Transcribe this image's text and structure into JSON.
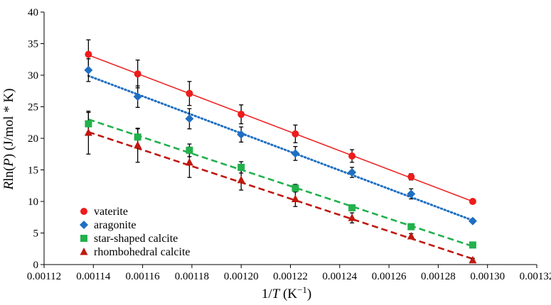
{
  "chart_data": {
    "type": "scatter",
    "title": "",
    "xlabel_parts": [
      "1/",
      "T",
      " (K",
      "−1",
      ")"
    ],
    "ylabel_parts": [
      "R",
      "ln(",
      "P",
      ") (J/mol * K)"
    ],
    "xlim": [
      0.00112,
      0.00132
    ],
    "ylim": [
      0,
      40
    ],
    "x_ticks": [
      "0.00112",
      "0.00114",
      "0.00116",
      "0.00118",
      "0.00120",
      "0.00122",
      "0.00124",
      "0.00126",
      "0.00128",
      "0.00130",
      "0.00132"
    ],
    "y_ticks": [
      "0",
      "5",
      "10",
      "15",
      "20",
      "25",
      "30",
      "35",
      "40"
    ],
    "grid": false,
    "legend_position": "bottom-left",
    "x": [
      0.001138,
      0.001158,
      0.001179,
      0.0012,
      0.001222,
      0.001245,
      0.001269,
      0.001294
    ],
    "series": [
      {
        "name": "vaterite",
        "marker": "circle",
        "color": "#ee1c1c",
        "line_style": "solid",
        "values": [
          33.3,
          30.2,
          27.1,
          23.8,
          20.7,
          17.2,
          13.9,
          10.0
        ],
        "errors": [
          2.3,
          2.2,
          1.9,
          1.5,
          1.4,
          1.0,
          0.5,
          0.3
        ],
        "fit": [
          [
            0.001138,
            33.2
          ],
          [
            0.001294,
            10.0
          ]
        ]
      },
      {
        "name": "aragonite",
        "marker": "diamond",
        "color": "#1f6fc1",
        "line_style": "dotted",
        "values": [
          30.8,
          26.6,
          23.1,
          20.6,
          17.6,
          14.6,
          11.2,
          6.9
        ],
        "errors": [
          1.8,
          1.7,
          1.6,
          1.2,
          1.1,
          0.8,
          0.8,
          0.3
        ],
        "fit": [
          [
            0.001138,
            29.9
          ],
          [
            0.001294,
            7.0
          ]
        ]
      },
      {
        "name": "star-shaped calcite",
        "marker": "square",
        "color": "#22b14c",
        "line_style": "dashed",
        "values": [
          22.3,
          20.2,
          18.1,
          15.4,
          12.1,
          9.0,
          6.0,
          3.1
        ],
        "errors": [
          1.8,
          1.3,
          1.0,
          0.9,
          0.6,
          0.4,
          0.3,
          0.3
        ],
        "fit": [
          [
            0.001138,
            23.0
          ],
          [
            0.001294,
            2.9
          ]
        ]
      },
      {
        "name": "rhombohedral calcite",
        "marker": "triangle",
        "color": "#c0180f",
        "line_style": "dashed",
        "values": [
          20.9,
          18.9,
          16.2,
          13.4,
          10.4,
          7.4,
          4.5,
          0.7
        ],
        "errors": [
          3.4,
          2.7,
          2.4,
          1.6,
          1.2,
          0.8,
          0.4,
          0.3
        ],
        "fit": [
          [
            0.001138,
            21.0
          ],
          [
            0.001294,
            0.9
          ]
        ]
      }
    ]
  }
}
